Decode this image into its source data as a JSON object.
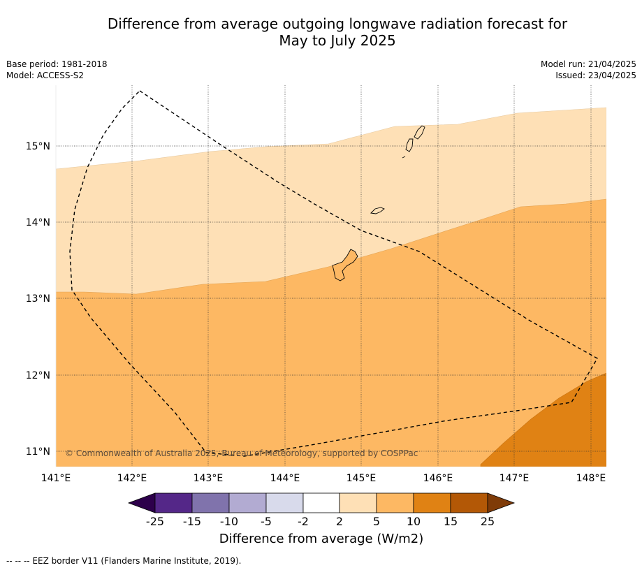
{
  "title_line1": "Difference from average outgoing longwave radiation forecast for",
  "title_line2": "May to July 2025",
  "base_period": "Base period: 1981-2018",
  "model": "Model: ACCESS-S2",
  "model_run": "Model run: 21/04/2025",
  "issued": "Issued: 23/04/2025",
  "credit": "© Commonwealth of Australia 2025, Bureau of Meteorology, supported by COSPPac",
  "footnote": "-- -- -- EEZ border V11 (Flanders Marine Institute, 2019).",
  "lon_labels": [
    "141°E",
    "142°E",
    "143°E",
    "144°E",
    "145°E",
    "146°E",
    "147°E",
    "148°E"
  ],
  "lat_labels": [
    "15°N",
    "14°N",
    "13°N",
    "12°N",
    "11°N"
  ],
  "colorbar": {
    "title": "Difference from average (W/m2)",
    "tick_labels": [
      "-25",
      "-15",
      "-10",
      "-5",
      "-2",
      "2",
      "5",
      "10",
      "15",
      "25"
    ],
    "colors": {
      "under": "#2d004b",
      "bins": [
        "#542788",
        "#8073ac",
        "#b2abd2",
        "#d8daeb",
        "#ffffff",
        "#fee0b6",
        "#fdb863",
        "#e08214",
        "#b35806"
      ],
      "over": "#7f3b08"
    }
  }
}
